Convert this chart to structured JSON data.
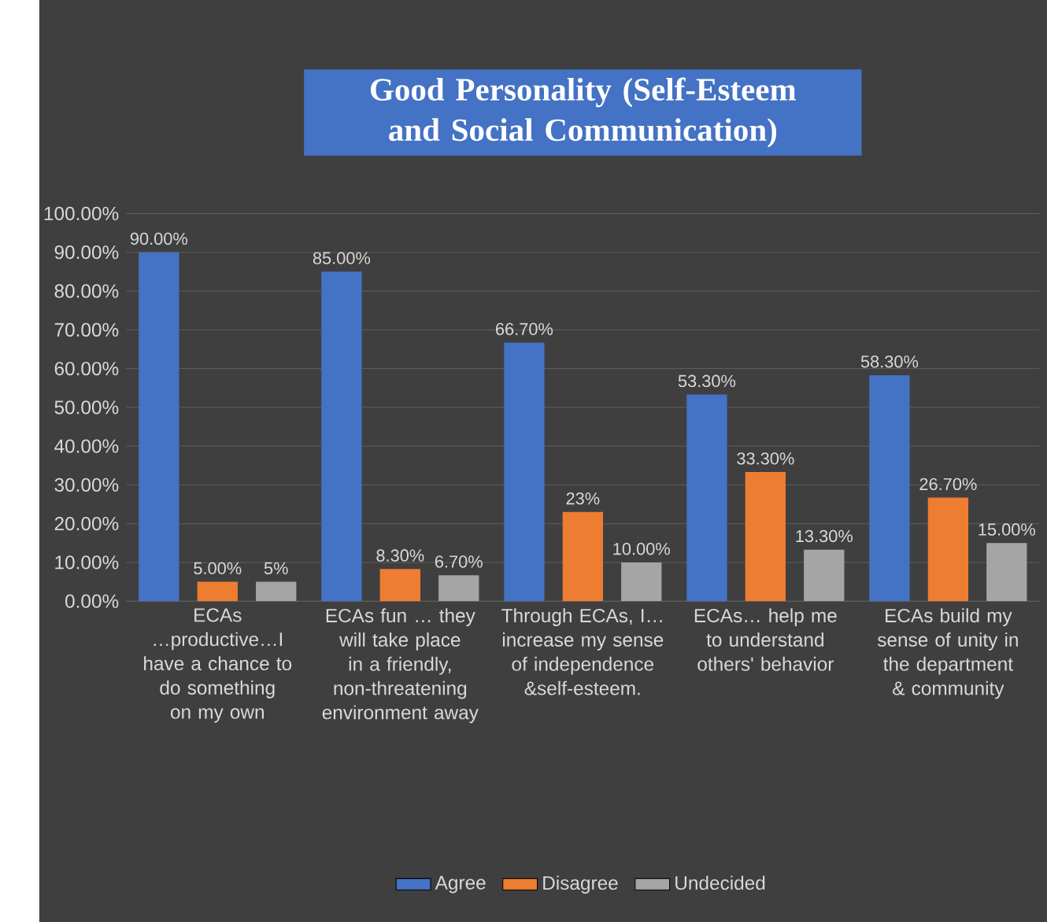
{
  "chart_data": {
    "type": "bar",
    "title": "Good Personality (Self-Esteem and Social Communication)",
    "categories": [
      "ECAs …productive…I have a chance to do something on my own",
      "ECAs fun … they will take place in a friendly, non-threatening environment away",
      "Through ECAs, I… increase my sense of independence &self-esteem.",
      "ECAs… help me to understand others' behavior",
      "ECAs build my sense of unity in the department & community"
    ],
    "series": [
      {
        "name": "Agree",
        "color": "#4472c4",
        "values": [
          90,
          85,
          66.7,
          53.3,
          58.3
        ],
        "value_labels": [
          "90.00%",
          "85.00%",
          "66.70%",
          "53.30%",
          "58.30%"
        ]
      },
      {
        "name": "Disagree",
        "color": "#ed7d31",
        "values": [
          5,
          8.3,
          23,
          33.3,
          26.7
        ],
        "value_labels": [
          "5.00%",
          "8.30%",
          "23%",
          "33.30%",
          "26.70%"
        ]
      },
      {
        "name": "Undecided",
        "color": "#a5a5a5",
        "values": [
          5,
          6.7,
          10,
          13.3,
          15
        ],
        "value_labels": [
          "5%",
          "6.70%",
          "10.00%",
          "13.30%",
          "15.00%"
        ]
      }
    ],
    "ylim": [
      0,
      100
    ],
    "yticks": [
      {
        "value": 0,
        "label": "0.00%"
      },
      {
        "value": 10,
        "label": "10.00%"
      },
      {
        "value": 20,
        "label": "20.00%"
      },
      {
        "value": 30,
        "label": "30.00%"
      },
      {
        "value": 40,
        "label": "40.00%"
      },
      {
        "value": 50,
        "label": "50.00%"
      },
      {
        "value": 60,
        "label": "60.00%"
      },
      {
        "value": 70,
        "label": "70.00%"
      },
      {
        "value": 80,
        "label": "80.00%"
      },
      {
        "value": 90,
        "label": "90.00%"
      },
      {
        "value": 100,
        "label": "100.00%"
      }
    ],
    "grid": "y",
    "legend": "bottom"
  }
}
